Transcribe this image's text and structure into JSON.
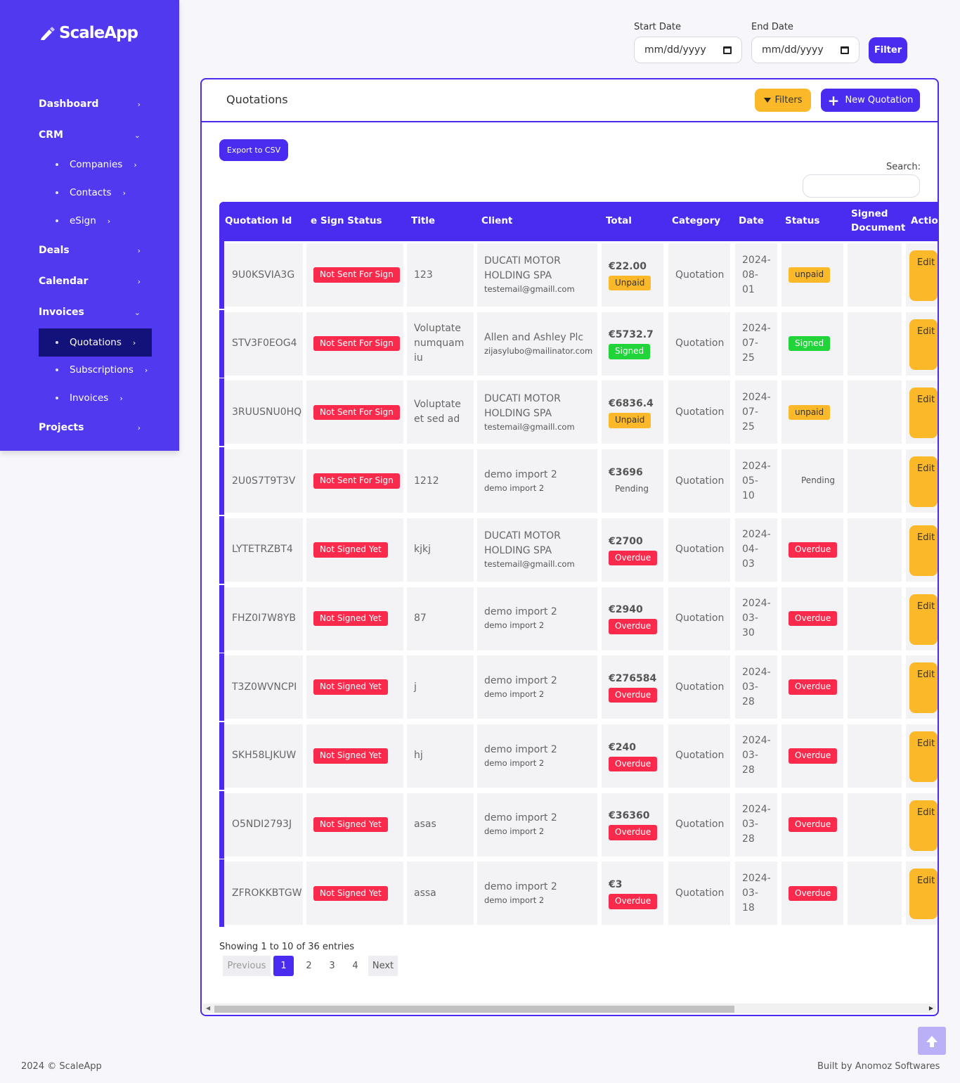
{
  "brand": {
    "name": "ScaleApp"
  },
  "sidebar": {
    "items": [
      {
        "label": "Dashboard",
        "chevron": "›"
      },
      {
        "label": "CRM",
        "chevron": "⌄"
      },
      {
        "label": "Companies",
        "chevron": "›"
      },
      {
        "label": "Contacts",
        "chevron": "›"
      },
      {
        "label": "eSign",
        "chevron": "›"
      },
      {
        "label": "Deals",
        "chevron": "›"
      },
      {
        "label": "Calendar",
        "chevron": "›"
      },
      {
        "label": "Invoices",
        "chevron": "⌄"
      },
      {
        "label": "Quotations",
        "chevron": "›"
      },
      {
        "label": "Subscriptions",
        "chevron": "›"
      },
      {
        "label": "Invoices",
        "chevron": "›"
      },
      {
        "label": "Projects",
        "chevron": "›"
      }
    ]
  },
  "date_filter": {
    "start_label": "Start Date",
    "end_label": "End Date",
    "start_placeholder": "mm/dd/yyyy",
    "end_placeholder": "mm/dd/yyyy",
    "filter_button": "Filter"
  },
  "card": {
    "title": "Quotations",
    "filters_button": "Filters",
    "new_button": "New Quotation",
    "export_button": "Export to CSV",
    "search_label": "Search:"
  },
  "table": {
    "headers": [
      "Quotation Id",
      "e Sign Status",
      "Title",
      "Client",
      "Total",
      "Category",
      "Date",
      "Status",
      "Signed Document",
      "Action"
    ],
    "edit_label": "Edit",
    "rows": [
      {
        "id": "9U0KSVIA3G",
        "esign": "Not Sent For Sign",
        "title": "123",
        "client": "DUCATI MOTOR HOLDING SPA",
        "client_email": "testemail@gmaill.com",
        "total": "€22.00",
        "total_status": "Unpaid",
        "category": "Quotation",
        "date": "2024-08-01",
        "status": "unpaid"
      },
      {
        "id": "STV3F0EOG4",
        "esign": "Not Sent For Sign",
        "title": "Voluptate numquam iu",
        "client": "Allen and Ashley Plc",
        "client_email": "zijasylubo@mailinator.com",
        "total": "€5732.7",
        "total_status": "Signed",
        "category": "Quotation",
        "date": "2024-07-25",
        "status": "Signed"
      },
      {
        "id": "3RUUSNU0HQ",
        "esign": "Not Sent For Sign",
        "title": "Voluptate et sed ad",
        "client": "DUCATI MOTOR HOLDING SPA",
        "client_email": "testemail@gmaill.com",
        "total": "€6836.4",
        "total_status": "Unpaid",
        "category": "Quotation",
        "date": "2024-07-25",
        "status": "unpaid"
      },
      {
        "id": "2U0S7T9T3V",
        "esign": "Not Sent For Sign",
        "title": "1212",
        "client": "demo import 2",
        "client_email": "demo import 2",
        "total": "€3696",
        "total_status": "Pending",
        "category": "Quotation",
        "date": "2024-05-10",
        "status": "Pending"
      },
      {
        "id": "LYTETRZBT4",
        "esign": "Not Signed Yet",
        "title": "kjkj",
        "client": "DUCATI MOTOR HOLDING SPA",
        "client_email": "testemail@gmaill.com",
        "total": "€2700",
        "total_status": "Overdue",
        "category": "Quotation",
        "date": "2024-04-03",
        "status": "Overdue"
      },
      {
        "id": "FHZ0I7W8YB",
        "esign": "Not Signed Yet",
        "title": "87",
        "client": "demo import 2",
        "client_email": "demo import 2",
        "total": "€2940",
        "total_status": "Overdue",
        "category": "Quotation",
        "date": "2024-03-30",
        "status": "Overdue"
      },
      {
        "id": "T3Z0WVNCPI",
        "esign": "Not Signed Yet",
        "title": "j",
        "client": "demo import 2",
        "client_email": "demo import 2",
        "total": "€276584",
        "total_status": "Overdue",
        "category": "Quotation",
        "date": "2024-03-28",
        "status": "Overdue"
      },
      {
        "id": "SKH58LJKUW",
        "esign": "Not Signed Yet",
        "title": "hj",
        "client": "demo import 2",
        "client_email": "demo import 2",
        "total": "€240",
        "total_status": "Overdue",
        "category": "Quotation",
        "date": "2024-03-28",
        "status": "Overdue"
      },
      {
        "id": "O5NDI2793J",
        "esign": "Not Signed Yet",
        "title": "asas",
        "client": "demo import 2",
        "client_email": "demo import 2",
        "total": "€36360",
        "total_status": "Overdue",
        "category": "Quotation",
        "date": "2024-03-28",
        "status": "Overdue"
      },
      {
        "id": "ZFROKKBTGW",
        "esign": "Not Signed Yet",
        "title": "assa",
        "client": "demo import 2",
        "client_email": "demo import 2",
        "total": "€3",
        "total_status": "Overdue",
        "category": "Quotation",
        "date": "2024-03-18",
        "status": "Overdue"
      }
    ]
  },
  "pagination": {
    "info": "Showing 1 to 10 of 36 entries",
    "previous": "Previous",
    "pages": [
      "1",
      "2",
      "3",
      "4"
    ],
    "next": "Next"
  },
  "footer": {
    "left": "2024 © ScaleApp",
    "right": "Built by Anomoz Softwares"
  },
  "colors": {
    "primary": "#4a2bf0",
    "sidebar": "#5039ee",
    "active_nav": "#13127a",
    "danger": "#f92a4c",
    "warning": "#fbb829",
    "success": "#21d43a"
  }
}
